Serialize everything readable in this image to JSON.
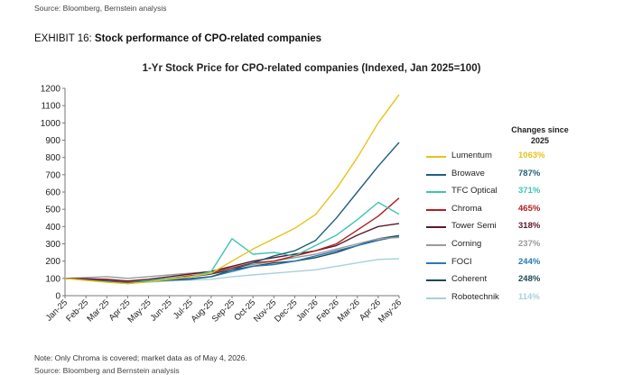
{
  "header": {
    "source_top": "Source: Bloomberg, Bernstein analysis",
    "exhibit_number": "EXHIBIT 16:",
    "exhibit_title": "Stock performance of CPO-related companies"
  },
  "footer": {
    "note": "Note: Only Chroma is covered; market data as of May 4, 2026.",
    "source": "Source: Bloomberg and Bernstein analysis"
  },
  "chart_data": {
    "type": "line",
    "title": "1-Yr Stock Price for CPO-related companies (Indexed, Jan 2025=100)",
    "xlabel": "",
    "ylabel": "",
    "ylim": [
      0,
      1200
    ],
    "yticks": [
      0,
      100,
      200,
      300,
      400,
      500,
      600,
      700,
      800,
      900,
      1000,
      1100,
      1200
    ],
    "xtick_labels": [
      "Jan-25",
      "Feb-25",
      "Mar-25",
      "Apr-25",
      "May-25",
      "Jun-25",
      "Jul-25",
      "Aug-25",
      "Sep-25",
      "Oct-25",
      "Nov-25",
      "Dec-25",
      "Jan-26",
      "Feb-26",
      "Mar-26",
      "Apr-26",
      "May-26"
    ],
    "x": [
      "Jan-25",
      "Feb-25",
      "Mar-25",
      "Apr-25",
      "May-25",
      "Jun-25",
      "Jul-25",
      "Aug-25",
      "Sep-25",
      "Oct-25",
      "Nov-25",
      "Dec-25",
      "Jan-26",
      "Feb-26",
      "Mar-26",
      "Apr-26",
      "May-26"
    ],
    "grid": false,
    "legend_position": "right",
    "legend_header": "Changes since 2025",
    "series": [
      {
        "name": "Lumentum",
        "change": "1063%",
        "color": "#e8c21a",
        "values": [
          100,
          88,
          78,
          70,
          80,
          95,
          110,
          130,
          200,
          270,
          330,
          390,
          470,
          620,
          800,
          1000,
          1163
        ]
      },
      {
        "name": "Browave",
        "change": "787%",
        "color": "#1f5f7a",
        "values": [
          100,
          92,
          85,
          75,
          82,
          90,
          95,
          110,
          150,
          190,
          230,
          260,
          320,
          450,
          600,
          750,
          887
        ]
      },
      {
        "name": "TFC Optical",
        "change": "371%",
        "color": "#3cc4b4",
        "values": [
          100,
          90,
          85,
          75,
          88,
          100,
          110,
          140,
          330,
          240,
          250,
          230,
          290,
          350,
          440,
          540,
          471
        ]
      },
      {
        "name": "Chroma",
        "change": "465%",
        "color": "#b02020",
        "values": [
          100,
          95,
          92,
          80,
          90,
          100,
          115,
          130,
          160,
          190,
          200,
          230,
          260,
          300,
          380,
          460,
          565
        ]
      },
      {
        "name": "Tower Semi",
        "change": "318%",
        "color": "#5a1a2a",
        "values": [
          100,
          98,
          95,
          85,
          95,
          110,
          125,
          140,
          170,
          200,
          220,
          240,
          260,
          290,
          350,
          400,
          418
        ]
      },
      {
        "name": "Corning",
        "change": "237%",
        "color": "#9a9a9a",
        "values": [
          100,
          105,
          110,
          100,
          110,
          120,
          130,
          140,
          160,
          180,
          200,
          220,
          240,
          270,
          300,
          330,
          337
        ]
      },
      {
        "name": "FOCI",
        "change": "244%",
        "color": "#2a78b8",
        "values": [
          100,
          95,
          90,
          80,
          85,
          95,
          100,
          110,
          140,
          170,
          180,
          200,
          230,
          260,
          290,
          320,
          344
        ]
      },
      {
        "name": "Coherent",
        "change": "248%",
        "color": "#1c4a52",
        "values": [
          100,
          92,
          85,
          70,
          82,
          95,
          110,
          125,
          150,
          170,
          190,
          200,
          220,
          250,
          290,
          330,
          348
        ]
      },
      {
        "name": "Robotechnik",
        "change": "114%",
        "color": "#a8d0dc",
        "values": [
          100,
          92,
          85,
          75,
          78,
          85,
          90,
          95,
          110,
          120,
          130,
          140,
          150,
          170,
          190,
          210,
          214
        ]
      }
    ]
  }
}
